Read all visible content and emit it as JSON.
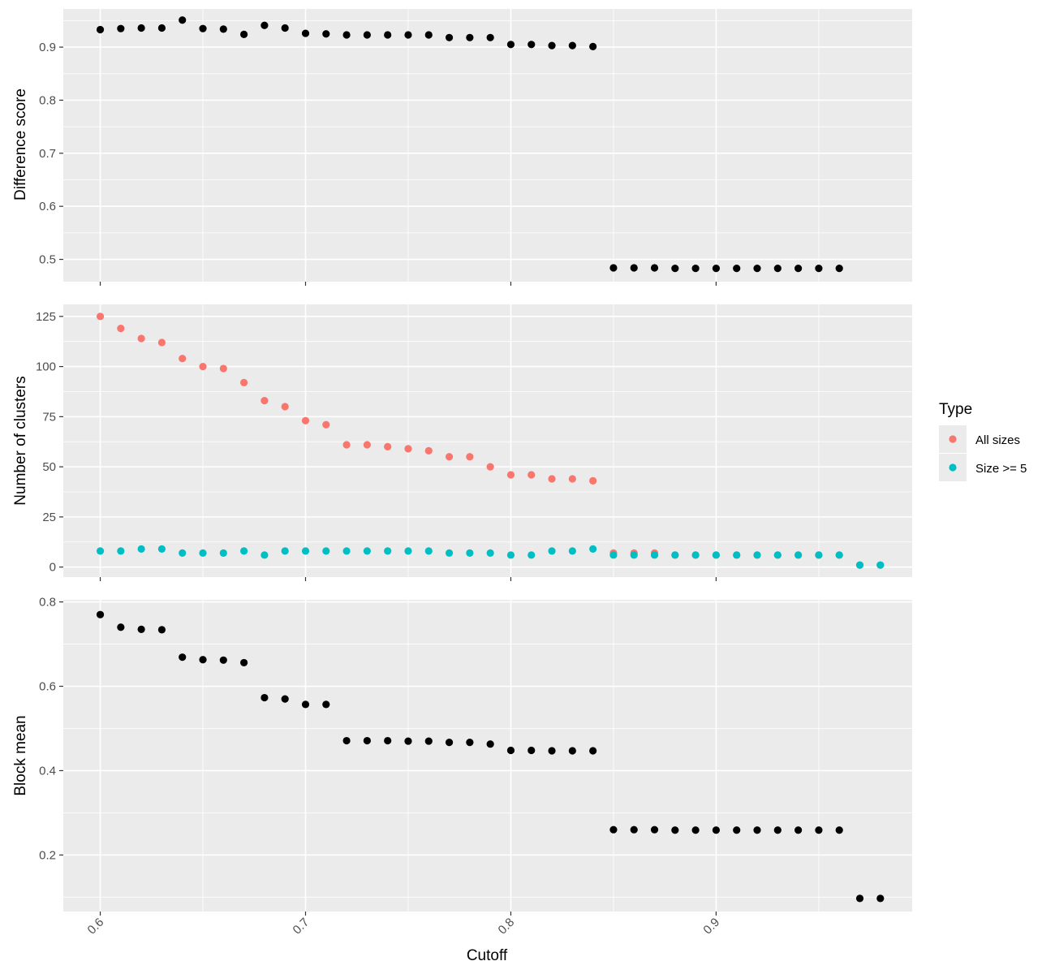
{
  "chart_data": {
    "type": "scatter",
    "x_label": "Cutoff",
    "x_range": [
      0.582,
      0.9955
    ],
    "x_ticks": [
      0.6,
      0.7,
      0.8,
      0.9
    ],
    "x_tick_labels": [
      "0.6",
      "0.7",
      "0.8",
      "0.9"
    ],
    "x_minor_ticks": [
      0.65,
      0.75,
      0.85,
      0.95
    ],
    "grid": true,
    "legend": {
      "title": "Type",
      "placement": "right",
      "entries": [
        {
          "label": "All sizes",
          "color": "#F8766D"
        },
        {
          "label": "Size >= 5",
          "color": "#00BFC4"
        }
      ]
    },
    "panels": [
      {
        "id": "difference",
        "ylabel": "Difference score",
        "y_range": [
          0.458,
          0.972
        ],
        "y_ticks": [
          0.5,
          0.6,
          0.7,
          0.8,
          0.9
        ],
        "y_tick_labels": [
          "0.5",
          "0.6",
          "0.7",
          "0.8",
          "0.9"
        ],
        "y_minor_ticks": [
          0.45,
          0.55,
          0.65,
          0.75,
          0.85,
          0.95
        ],
        "series": [
          {
            "color": "#000000",
            "points": [
              [
                0.6,
                0.933
              ],
              [
                0.61,
                0.935
              ],
              [
                0.62,
                0.936
              ],
              [
                0.63,
                0.936
              ],
              [
                0.64,
                0.951
              ],
              [
                0.65,
                0.935
              ],
              [
                0.66,
                0.934
              ],
              [
                0.67,
                0.924
              ],
              [
                0.68,
                0.941
              ],
              [
                0.69,
                0.936
              ],
              [
                0.7,
                0.926
              ],
              [
                0.71,
                0.925
              ],
              [
                0.72,
                0.923
              ],
              [
                0.73,
                0.923
              ],
              [
                0.74,
                0.923
              ],
              [
                0.75,
                0.923
              ],
              [
                0.76,
                0.923
              ],
              [
                0.77,
                0.918
              ],
              [
                0.78,
                0.918
              ],
              [
                0.79,
                0.918
              ],
              [
                0.8,
                0.905
              ],
              [
                0.81,
                0.905
              ],
              [
                0.82,
                0.903
              ],
              [
                0.83,
                0.903
              ],
              [
                0.84,
                0.901
              ],
              [
                0.85,
                0.484
              ],
              [
                0.86,
                0.484
              ],
              [
                0.87,
                0.484
              ],
              [
                0.88,
                0.483
              ],
              [
                0.89,
                0.483
              ],
              [
                0.9,
                0.483
              ],
              [
                0.91,
                0.483
              ],
              [
                0.92,
                0.483
              ],
              [
                0.93,
                0.483
              ],
              [
                0.94,
                0.483
              ],
              [
                0.95,
                0.483
              ],
              [
                0.96,
                0.483
              ]
            ]
          }
        ]
      },
      {
        "id": "clusters",
        "ylabel": "Number of clusters",
        "y_range": [
          -5,
          131
        ],
        "y_ticks": [
          0,
          25,
          50,
          75,
          100,
          125
        ],
        "y_tick_labels": [
          "0",
          "25",
          "50",
          "75",
          "100",
          "125"
        ],
        "y_minor_ticks": [
          12.5,
          37.5,
          62.5,
          87.5,
          112.5
        ],
        "series": [
          {
            "name": "All sizes",
            "color": "#F8766D",
            "points": [
              [
                0.6,
                125
              ],
              [
                0.61,
                119
              ],
              [
                0.62,
                114
              ],
              [
                0.63,
                112
              ],
              [
                0.64,
                104
              ],
              [
                0.65,
                100
              ],
              [
                0.66,
                99
              ],
              [
                0.67,
                92
              ],
              [
                0.68,
                83
              ],
              [
                0.69,
                80
              ],
              [
                0.7,
                73
              ],
              [
                0.71,
                71
              ],
              [
                0.72,
                61
              ],
              [
                0.73,
                61
              ],
              [
                0.74,
                60
              ],
              [
                0.75,
                59
              ],
              [
                0.76,
                58
              ],
              [
                0.77,
                55
              ],
              [
                0.78,
                55
              ],
              [
                0.79,
                50
              ],
              [
                0.8,
                46
              ],
              [
                0.81,
                46
              ],
              [
                0.82,
                44
              ],
              [
                0.83,
                44
              ],
              [
                0.84,
                43
              ],
              [
                0.85,
                7
              ],
              [
                0.86,
                7
              ],
              [
                0.87,
                7
              ],
              [
                0.88,
                6
              ],
              [
                0.89,
                6
              ],
              [
                0.9,
                6
              ],
              [
                0.91,
                6
              ],
              [
                0.92,
                6
              ],
              [
                0.93,
                6
              ],
              [
                0.94,
                6
              ],
              [
                0.95,
                6
              ],
              [
                0.96,
                6
              ],
              [
                0.97,
                1
              ],
              [
                0.98,
                1
              ]
            ]
          },
          {
            "name": "Size >= 5",
            "color": "#00BFC4",
            "points": [
              [
                0.6,
                8
              ],
              [
                0.61,
                8
              ],
              [
                0.62,
                9
              ],
              [
                0.63,
                9
              ],
              [
                0.64,
                7
              ],
              [
                0.65,
                7
              ],
              [
                0.66,
                7
              ],
              [
                0.67,
                8
              ],
              [
                0.68,
                6
              ],
              [
                0.69,
                8
              ],
              [
                0.7,
                8
              ],
              [
                0.71,
                8
              ],
              [
                0.72,
                8
              ],
              [
                0.73,
                8
              ],
              [
                0.74,
                8
              ],
              [
                0.75,
                8
              ],
              [
                0.76,
                8
              ],
              [
                0.77,
                7
              ],
              [
                0.78,
                7
              ],
              [
                0.79,
                7
              ],
              [
                0.8,
                6
              ],
              [
                0.81,
                6
              ],
              [
                0.82,
                8
              ],
              [
                0.83,
                8
              ],
              [
                0.84,
                9
              ],
              [
                0.85,
                6
              ],
              [
                0.86,
                6
              ],
              [
                0.87,
                6
              ],
              [
                0.88,
                6
              ],
              [
                0.89,
                6
              ],
              [
                0.9,
                6
              ],
              [
                0.91,
                6
              ],
              [
                0.92,
                6
              ],
              [
                0.93,
                6
              ],
              [
                0.94,
                6
              ],
              [
                0.95,
                6
              ],
              [
                0.96,
                6
              ],
              [
                0.97,
                1
              ],
              [
                0.98,
                1
              ]
            ]
          }
        ]
      },
      {
        "id": "block",
        "ylabel": "Block mean",
        "y_range": [
          0.066,
          0.805
        ],
        "y_ticks": [
          0.2,
          0.4,
          0.6,
          0.8
        ],
        "y_tick_labels": [
          "0.2",
          "0.4",
          "0.6",
          "0.8"
        ],
        "y_minor_ticks": [
          0.1,
          0.3,
          0.5,
          0.7
        ],
        "series": [
          {
            "color": "#000000",
            "points": [
              [
                0.6,
                0.77
              ],
              [
                0.61,
                0.74
              ],
              [
                0.62,
                0.735
              ],
              [
                0.63,
                0.734
              ],
              [
                0.64,
                0.669
              ],
              [
                0.65,
                0.663
              ],
              [
                0.66,
                0.662
              ],
              [
                0.67,
                0.656
              ],
              [
                0.68,
                0.573
              ],
              [
                0.69,
                0.57
              ],
              [
                0.7,
                0.557
              ],
              [
                0.71,
                0.557
              ],
              [
                0.72,
                0.471
              ],
              [
                0.73,
                0.471
              ],
              [
                0.74,
                0.471
              ],
              [
                0.75,
                0.47
              ],
              [
                0.76,
                0.47
              ],
              [
                0.77,
                0.467
              ],
              [
                0.78,
                0.467
              ],
              [
                0.79,
                0.463
              ],
              [
                0.8,
                0.448
              ],
              [
                0.81,
                0.448
              ],
              [
                0.82,
                0.447
              ],
              [
                0.83,
                0.447
              ],
              [
                0.84,
                0.447
              ],
              [
                0.85,
                0.26
              ],
              [
                0.86,
                0.26
              ],
              [
                0.87,
                0.26
              ],
              [
                0.88,
                0.259
              ],
              [
                0.89,
                0.259
              ],
              [
                0.9,
                0.259
              ],
              [
                0.91,
                0.259
              ],
              [
                0.92,
                0.259
              ],
              [
                0.93,
                0.259
              ],
              [
                0.94,
                0.259
              ],
              [
                0.95,
                0.259
              ],
              [
                0.96,
                0.259
              ],
              [
                0.97,
                0.097
              ],
              [
                0.98,
                0.097
              ]
            ]
          }
        ]
      }
    ]
  }
}
